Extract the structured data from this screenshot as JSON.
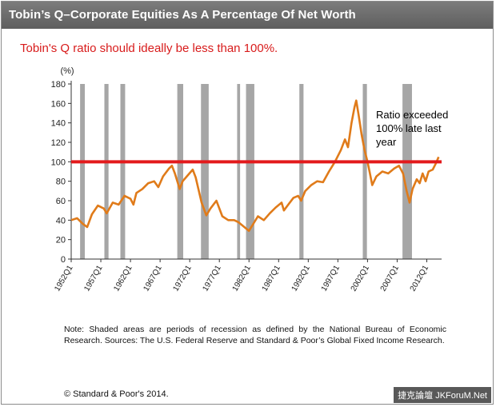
{
  "header": {
    "title": "Tobin’s Q–Corporate Equities As A Percentage Of Net Worth",
    "subtitle": "Tobin's Q ratio should ideally be less than 100%."
  },
  "chart_data": {
    "type": "line",
    "ylabel": "(%)",
    "ylim": [
      0,
      180
    ],
    "y_ticks": [
      "0",
      "20",
      "40",
      "60",
      "80",
      "100",
      "120",
      "140",
      "160",
      "180"
    ],
    "x_ticks": [
      "1952Q1",
      "1957Q1",
      "1962Q1",
      "1967Q1",
      "1972Q1",
      "1977Q1",
      "1982Q1",
      "1987Q1",
      "1992Q1",
      "1997Q1",
      "2002Q1",
      "2007Q1",
      "2012Q1"
    ],
    "xlim": [
      1952,
      2014.5
    ],
    "reference_line": {
      "value": 100,
      "color": "#e31a1c"
    },
    "recessions": [
      [
        1953.5,
        1954.3
      ],
      [
        1957.6,
        1958.3
      ],
      [
        1960.3,
        1961.1
      ],
      [
        1969.9,
        1970.9
      ],
      [
        1973.9,
        1975.2
      ],
      [
        1980.0,
        1980.5
      ],
      [
        1981.5,
        1982.9
      ],
      [
        1990.5,
        1991.2
      ],
      [
        2001.2,
        2001.9
      ],
      [
        2007.9,
        2009.5
      ]
    ],
    "series": [
      {
        "color": "#e07b1a",
        "points": [
          [
            1952,
            40
          ],
          [
            1953,
            42
          ],
          [
            1954,
            36
          ],
          [
            1954.7,
            33
          ],
          [
            1955.5,
            46
          ],
          [
            1956.5,
            55
          ],
          [
            1957.5,
            52
          ],
          [
            1958,
            47
          ],
          [
            1959,
            58
          ],
          [
            1960,
            56
          ],
          [
            1961,
            65
          ],
          [
            1962,
            62
          ],
          [
            1962.5,
            56
          ],
          [
            1963,
            68
          ],
          [
            1964,
            72
          ],
          [
            1965,
            78
          ],
          [
            1966,
            80
          ],
          [
            1966.7,
            74
          ],
          [
            1967.5,
            85
          ],
          [
            1968.5,
            93
          ],
          [
            1969,
            96
          ],
          [
            1969.5,
            88
          ],
          [
            1970.3,
            72
          ],
          [
            1970.8,
            80
          ],
          [
            1971.5,
            85
          ],
          [
            1972.5,
            92
          ],
          [
            1973,
            84
          ],
          [
            1974,
            58
          ],
          [
            1974.8,
            45
          ],
          [
            1975.5,
            52
          ],
          [
            1976.5,
            60
          ],
          [
            1977.5,
            44
          ],
          [
            1978.5,
            40
          ],
          [
            1979.5,
            40
          ],
          [
            1980.2,
            38
          ],
          [
            1981,
            34
          ],
          [
            1982,
            29
          ],
          [
            1982.8,
            37
          ],
          [
            1983.5,
            44
          ],
          [
            1984.5,
            40
          ],
          [
            1985.5,
            47
          ],
          [
            1986.5,
            53
          ],
          [
            1987.5,
            58
          ],
          [
            1987.9,
            50
          ],
          [
            1988.5,
            55
          ],
          [
            1989.5,
            63
          ],
          [
            1990.3,
            65
          ],
          [
            1990.8,
            60
          ],
          [
            1991.5,
            70
          ],
          [
            1992.5,
            76
          ],
          [
            1993.5,
            80
          ],
          [
            1994.5,
            79
          ],
          [
            1995.5,
            90
          ],
          [
            1996.5,
            100
          ],
          [
            1997.5,
            112
          ],
          [
            1998.2,
            123
          ],
          [
            1998.7,
            115
          ],
          [
            1999.3,
            140
          ],
          [
            1999.8,
            156
          ],
          [
            2000.1,
            163
          ],
          [
            2000.5,
            148
          ],
          [
            2001,
            128
          ],
          [
            2001.5,
            112
          ],
          [
            2002,
            100
          ],
          [
            2002.4,
            88
          ],
          [
            2002.8,
            76
          ],
          [
            2003.5,
            85
          ],
          [
            2004.5,
            90
          ],
          [
            2005.5,
            88
          ],
          [
            2006.5,
            93
          ],
          [
            2007.3,
            96
          ],
          [
            2008,
            88
          ],
          [
            2008.6,
            70
          ],
          [
            2009.1,
            58
          ],
          [
            2009.6,
            72
          ],
          [
            2010.3,
            82
          ],
          [
            2010.8,
            78
          ],
          [
            2011.3,
            88
          ],
          [
            2011.8,
            80
          ],
          [
            2012.3,
            90
          ],
          [
            2013,
            92
          ],
          [
            2013.5,
            98
          ],
          [
            2014,
            105
          ]
        ]
      }
    ],
    "annotation": {
      "lines": [
        "Ratio exceeded",
        "100% late last",
        "year"
      ]
    }
  },
  "footer": {
    "note": "Note: Shaded areas are periods of recession as defined by the National Bureau of Economic Research. Sources: The U.S. Federal Reserve and Standard & Poor’s Global Fixed Income Research.",
    "copyright": "© Standard & Poor's 2014.",
    "watermark": "捷克論壇 JKForuM.Net"
  }
}
